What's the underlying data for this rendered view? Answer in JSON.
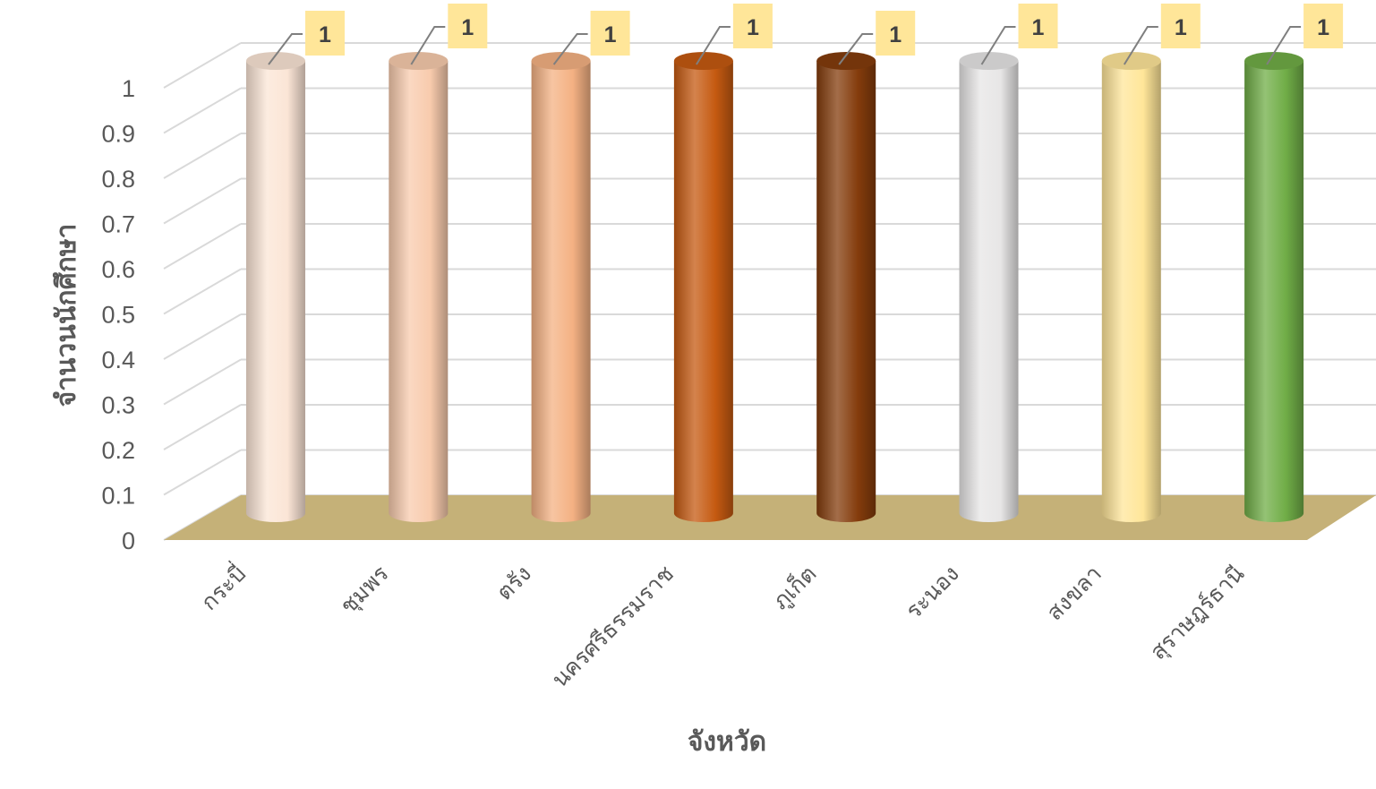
{
  "chart_data": {
    "type": "bar",
    "style": "3d-cylinder",
    "xlabel": "จังหวัด",
    "ylabel": "จำนวนนักศึกษา",
    "ylim": [
      0,
      1
    ],
    "yticks": [
      "0",
      "0.1",
      "0.2",
      "0.3",
      "0.4",
      "0.5",
      "0.6",
      "0.7",
      "0.8",
      "0.9",
      "1"
    ],
    "grid": true,
    "legend": "none",
    "floor_color": "#c5b178",
    "categories": [
      "กระบี่",
      "ชุมพร",
      "ตรัง",
      "นครศรีธรรมราช",
      "ภูเก็ต",
      "ระนอง",
      "สงขลา",
      "สุราษฎร์ธานี"
    ],
    "values": [
      1,
      1,
      1,
      1,
      1,
      1,
      1,
      1
    ],
    "data_labels": [
      "1",
      "1",
      "1",
      "1",
      "1",
      "1",
      "1",
      "1"
    ],
    "colors": [
      "#fbe5d6",
      "#f8cbad",
      "#f4b183",
      "#c55a11",
      "#843c0c",
      "#e7e6e6",
      "#ffe699",
      "#70ad47"
    ]
  }
}
